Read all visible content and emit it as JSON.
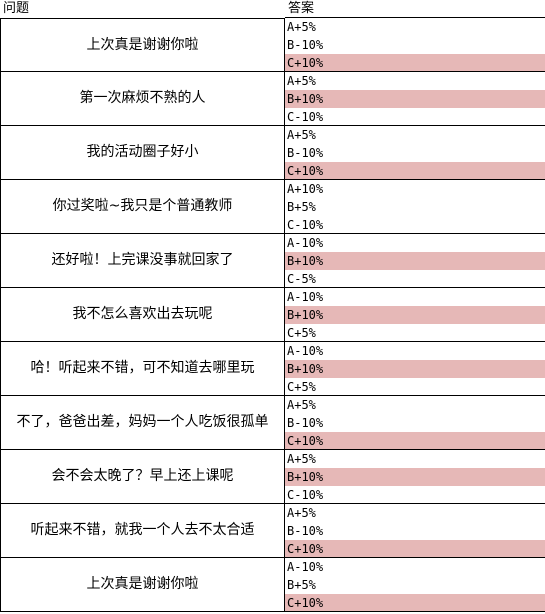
{
  "header": {
    "question": "问题",
    "answer": "答案"
  },
  "rows": [
    {
      "question": "上次真是谢谢你啦",
      "answers": [
        "A+5%",
        "B-10%",
        "C+10%"
      ],
      "highlight": 2
    },
    {
      "question": "第一次麻烦不熟的人",
      "answers": [
        "A+5%",
        "B+10%",
        "C-10%"
      ],
      "highlight": 1
    },
    {
      "question": "我的活动圈子好小",
      "answers": [
        "A+5%",
        "B-10%",
        "C+10%"
      ],
      "highlight": 2
    },
    {
      "question": "你过奖啦~我只是个普通教师",
      "answers": [
        "A+10%",
        "B+5%",
        "C-10%"
      ],
      "highlight": null
    },
    {
      "question": "还好啦！上完课没事就回家了",
      "answers": [
        "A-10%",
        "B+10%",
        "C-5%"
      ],
      "highlight": 1
    },
    {
      "question": "我不怎么喜欢出去玩呢",
      "answers": [
        "A-10%",
        "B+10%",
        "C+5%"
      ],
      "highlight": 1
    },
    {
      "question": "哈！听起来不错，可不知道去哪里玩",
      "answers": [
        "A-10%",
        "B+10%",
        "C+5%"
      ],
      "highlight": 1
    },
    {
      "question": "不了，爸爸出差，妈妈一个人吃饭很孤单",
      "answers": [
        "A+5%",
        "B-10%",
        "C+10%"
      ],
      "highlight": 2
    },
    {
      "question": "会不会太晚了？早上还上课呢",
      "answers": [
        "A+5%",
        "B+10%",
        "C-10%"
      ],
      "highlight": 1
    },
    {
      "question": "听起来不错，就我一个人去不太合适",
      "answers": [
        "A+5%",
        "B-10%",
        "C+10%"
      ],
      "highlight": 2
    },
    {
      "question": "上次真是谢谢你啦",
      "answers": [
        "A-10%",
        "B+5%",
        "C+10%"
      ],
      "highlight": 2
    }
  ]
}
